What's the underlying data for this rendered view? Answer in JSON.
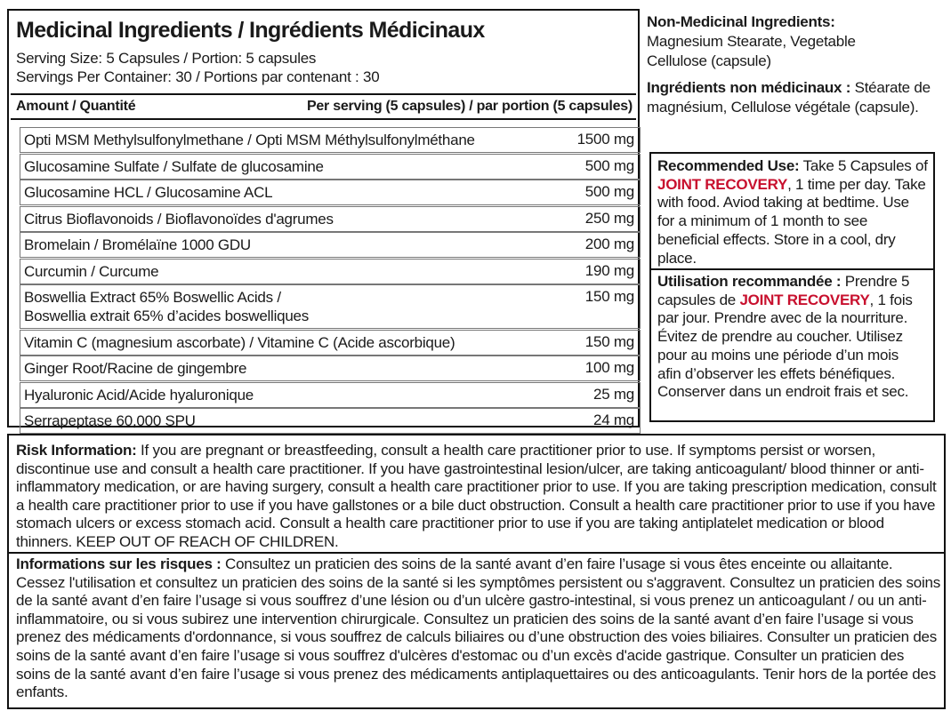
{
  "ingredients": {
    "title": "Medicinal Ingredients / Ingrédients Médicinaux",
    "serving": [
      "Serving Size: 5 Capsules / Portion: 5 capsules",
      "Servings Per Container: 30 / Portions par contenant : 30"
    ],
    "header": {
      "amount": "Amount / Quantité",
      "per_serving": "Per serving (5 capsules) / par portion (5 capsules)"
    },
    "rows": [
      {
        "name": "Opti MSM Methylsulfonylmethane / Opti MSM Méthylsulfonylméthane",
        "amount": "1500 mg"
      },
      {
        "name": "Glucosamine Sulfate / Sulfate de glucosamine",
        "amount": "500 mg"
      },
      {
        "name": "Glucosamine HCL / Glucosamine ACL",
        "amount": "500 mg"
      },
      {
        "name": "Citrus Bioflavonoids / Bioflavonoïdes d'agrumes",
        "amount": "250 mg"
      },
      {
        "name": "Bromelain / Bromélaïne 1000 GDU",
        "amount": "200 mg"
      },
      {
        "name": "Curcumin / Curcume",
        "amount": "190 mg"
      },
      {
        "name": "Boswellia Extract 65% Boswellic Acids /\nBoswellia extrait 65% d’acides boswelliques",
        "amount": "150 mg"
      },
      {
        "name": "Vitamin C (magnesium ascorbate) / Vitamine C (Acide ascorbique)",
        "amount": "150 mg"
      },
      {
        "name": "Ginger Root/Racine de gingembre",
        "amount": "100 mg"
      },
      {
        "name": "Hyaluronic Acid/Acide hyaluronique",
        "amount": "25 mg"
      },
      {
        "name": "Serrapeptase 60,000 SPU",
        "amount": "24 mg"
      }
    ]
  },
  "non_medicinal": {
    "en_label": "Non-Medicinal Ingredients:",
    "en_text": "Magnesium Stearate, Vegetable Cellulose (capsule)",
    "fr_label": "Ingrédients non médicinaux :",
    "fr_text": "Stéarate de magnésium, Cellulose végétale (capsule)."
  },
  "recommended_use": {
    "en": {
      "label": "Recommended Use:",
      "before": "Take 5 Capsules of",
      "product": "JOINT RECOVERY",
      "after": ", 1 time per day. Take with food. Aviod taking at bedtime. Use for a minimum of 1 month to see beneficial effects. Store in a cool, dry place."
    },
    "fr": {
      "label": "Utilisation recommandée :",
      "before": "Prendre 5 capsules de",
      "product": "JOINT RECOVERY",
      "after": ", 1 fois par jour. Prendre avec de la nourriture. Évitez de prendre au coucher. Utilisez pour au moins une période d’un mois afin d’observer les effets bénéfiques. Conserver dans un endroit frais et sec."
    }
  },
  "risk": {
    "en": {
      "label": "Risk Information:",
      "text": "If you are pregnant or breastfeeding, consult a health care practitioner prior to use. If symptoms persist or worsen, discontinue use and consult a health care practitioner. If you have gastrointestinal lesion/ulcer, are taking anticoagulant/ blood thinner or anti-inflammatory medication, or are having surgery, consult a health care practitioner prior to use. If you are taking prescription medication, consult a health care practitioner prior to use if you have gallstones or a bile duct obstruction. Consult a health care practitioner prior to use if you have stomach ulcers or excess stomach acid. Consult a health care practitioner prior to use if you are taking antiplatelet medication or blood thinners. KEEP OUT OF REACH OF CHILDREN."
    },
    "fr": {
      "label": "Informations sur les risques :",
      "text": "Consultez un praticien des soins de la santé avant d’en faire l’usage si vous êtes enceinte ou allaitante. Cessez l'utilisation et consultez un praticien des soins de la santé si les symptômes persistent ou s'aggravent. Consultez un praticien des soins de la santé avant d’en faire l’usage si vous souffrez d’une lésion ou d’un ulcère gastro-intestinal, si vous prenez un anticoagulant / ou un anti-inflammatoire, ou si vous subirez une intervention chirurgicale. Consultez un praticien des soins de la santé avant d’en faire l’usage si vous prenez des médicaments d'ordonnance, si vous souffrez de calculs biliaires ou d’une obstruction des voies biliaires. Consulter un praticien des soins de la santé avant d’en faire l’usage si vous souffrez d'ulcères d'estomac ou d’un excès d'acide gastrique. Consulter un praticien des soins de la santé avant d’en faire l’usage si vous prenez des médicaments antiplaquettaires ou des anticoagulants. Tenir hors de la portée des enfants."
    }
  }
}
